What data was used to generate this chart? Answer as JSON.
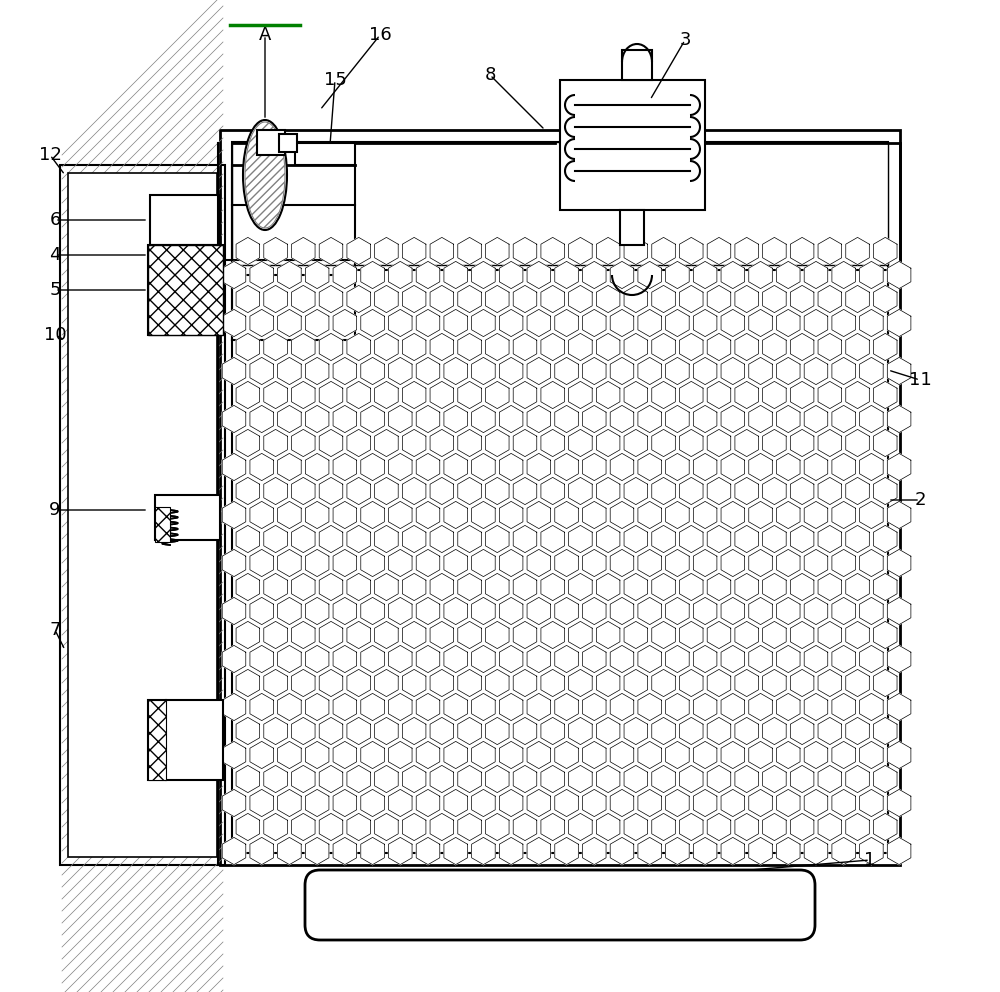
{
  "bg_color": "#ffffff",
  "line_color": "#000000",
  "line_width": 1.5,
  "fig_width": 10.0,
  "fig_height": 9.92
}
